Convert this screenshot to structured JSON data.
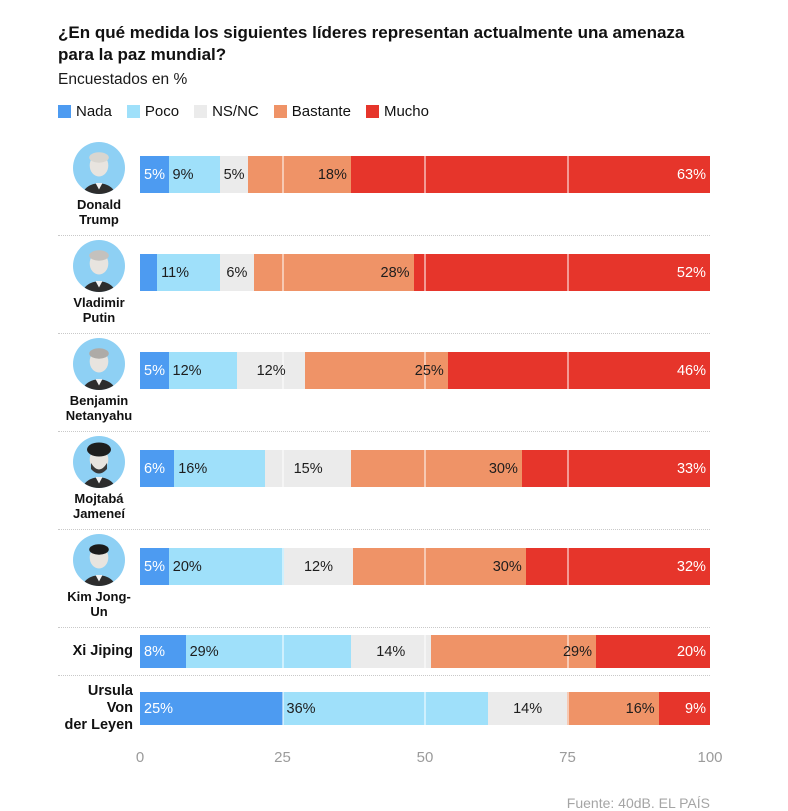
{
  "header": {
    "title": "¿En qué medida los siguientes líderes representan actualmente una amenaza para la paz mundial?",
    "subtitle": "Encuestados en %"
  },
  "legend": [
    {
      "key": "nada",
      "label": "Nada",
      "color": "#4d9bf1"
    },
    {
      "key": "poco",
      "label": "Poco",
      "color": "#9fe0fa"
    },
    {
      "key": "nsnc",
      "label": "NS/NC",
      "color": "#ebebeb"
    },
    {
      "key": "bastante",
      "label": "Bastante",
      "color": "#ef9367"
    },
    {
      "key": "mucho",
      "label": "Mucho",
      "color": "#e6352b"
    }
  ],
  "label_styles": [
    {
      "align": "flex-start",
      "color": "#ffffff"
    },
    {
      "align": "flex-start",
      "color": "#1d1d1d"
    },
    {
      "align": "center",
      "color": "#1d1d1d"
    },
    {
      "align": "flex-end",
      "color": "#1d1d1d"
    },
    {
      "align": "flex-end",
      "color": "#ffffff"
    }
  ],
  "colors": {
    "avatar_bg": "#8ed0f4",
    "separator": "#c9c9c9",
    "axis_text": "#9b9b9b",
    "source_text": "#a5a5a5"
  },
  "rows": [
    {
      "name_lines": [
        "Donald",
        "Trump"
      ],
      "has_avatar": true,
      "avatar": {
        "hair": "#d9d6d0",
        "skin": "#e8e4df",
        "suit": "#2d2d2d"
      },
      "values": [
        5,
        9,
        5,
        18,
        63
      ],
      "labels": [
        "5%",
        "9%",
        "5%",
        "18%",
        "63%"
      ]
    },
    {
      "name_lines": [
        "Vladimir",
        "Putin"
      ],
      "has_avatar": true,
      "avatar": {
        "hair": "#c4c1bd",
        "skin": "#e8e4df",
        "suit": "#2d2d2d"
      },
      "values": [
        3,
        11,
        6,
        28,
        52
      ],
      "labels": [
        "",
        "11%",
        "6%",
        "28%",
        "52%"
      ]
    },
    {
      "name_lines": [
        "Benjamin",
        "Netanyahu"
      ],
      "has_avatar": true,
      "avatar": {
        "hair": "#aeaba7",
        "skin": "#e8e4df",
        "suit": "#2d2d2d"
      },
      "values": [
        5,
        12,
        12,
        25,
        46
      ],
      "labels": [
        "5%",
        "12%",
        "12%",
        "25%",
        "46%"
      ]
    },
    {
      "name_lines": [
        "Mojtabá",
        "Jameneí"
      ],
      "has_avatar": true,
      "avatar": {
        "hair": "#1e1e1e",
        "skin": "#e8e4df",
        "suit": "#2d2d2d",
        "beard": "#3a3a3a",
        "turban": true
      },
      "values": [
        6,
        16,
        15,
        30,
        33
      ],
      "labels": [
        "6%",
        "16%",
        "15%",
        "30%",
        "33%"
      ]
    },
    {
      "name_lines": [
        "Kim Jong-",
        "Un"
      ],
      "has_avatar": true,
      "avatar": {
        "hair": "#1b1b1b",
        "skin": "#e8e4df",
        "suit": "#2d2d2d"
      },
      "values": [
        5,
        20,
        12,
        30,
        32
      ],
      "labels": [
        "5%",
        "20%",
        "12%",
        "30%",
        "32%"
      ]
    },
    {
      "name_lines": [
        "Xi Jiping"
      ],
      "has_avatar": false,
      "values": [
        8,
        29,
        14,
        29,
        20
      ],
      "labels": [
        "8%",
        "29%",
        "14%",
        "29%",
        "20%"
      ]
    },
    {
      "name_lines": [
        "Ursula Von",
        "der Leyen"
      ],
      "has_avatar": false,
      "values": [
        25,
        36,
        14,
        16,
        9
      ],
      "labels": [
        "25%",
        "36%",
        "14%",
        "16%",
        "9%"
      ]
    }
  ],
  "axis": {
    "ticks": [
      0,
      25,
      50,
      75,
      100
    ]
  },
  "source": "Fuente: 40dB. EL PAÍS",
  "chart_data": {
    "type": "bar",
    "orientation": "horizontal-stacked",
    "title": "¿En qué medida los siguientes líderes representan actualmente una amenaza para la paz mundial?",
    "subtitle": "Encuestados en %",
    "categories": [
      "Donald Trump",
      "Vladimir Putin",
      "Benjamin Netanyahu",
      "Mojtabá Jameneí",
      "Kim Jong-Un",
      "Xi Jiping",
      "Ursula Von der Leyen"
    ],
    "series": [
      {
        "name": "Nada",
        "color": "#4d9bf1",
        "values": [
          5,
          3,
          5,
          6,
          5,
          8,
          25
        ]
      },
      {
        "name": "Poco",
        "color": "#9fe0fa",
        "values": [
          9,
          11,
          12,
          16,
          20,
          29,
          36
        ]
      },
      {
        "name": "NS/NC",
        "color": "#ebebeb",
        "values": [
          5,
          6,
          12,
          15,
          12,
          14,
          14
        ]
      },
      {
        "name": "Bastante",
        "color": "#ef9367",
        "values": [
          18,
          28,
          25,
          30,
          30,
          29,
          16
        ]
      },
      {
        "name": "Mucho",
        "color": "#e6352b",
        "values": [
          63,
          52,
          46,
          33,
          32,
          20,
          9
        ]
      }
    ],
    "xlim": [
      0,
      100
    ],
    "x_ticks": [
      0,
      25,
      50,
      75,
      100
    ],
    "grid": "vertical-white-over-bars",
    "legend_position": "top",
    "source": "Fuente: 40dB. EL PAÍS"
  }
}
